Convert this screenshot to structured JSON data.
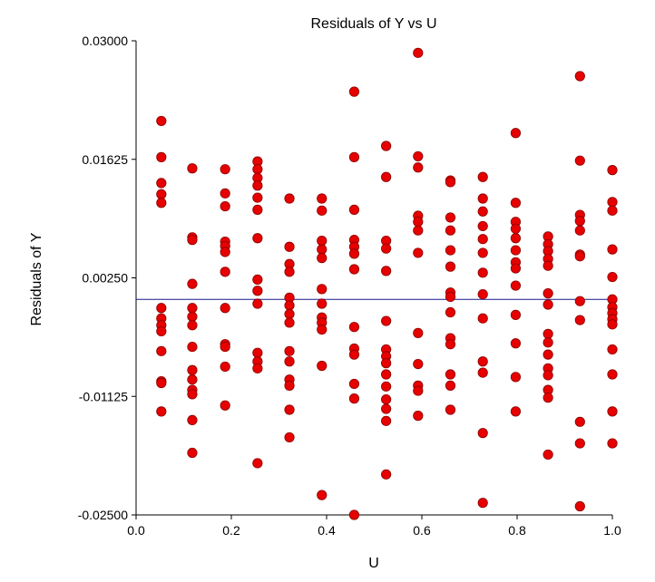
{
  "chart_data": {
    "type": "scatter",
    "title": "Residuals of Y vs U",
    "xlabel": "U",
    "ylabel": "Residuals of Y",
    "xlim": [
      0.0,
      1.0
    ],
    "ylim": [
      -0.025,
      0.03
    ],
    "x_ticks": [
      "0.0",
      "0.2",
      "0.4",
      "0.6",
      "0.8",
      "1.0"
    ],
    "y_ticks": [
      "0.03000",
      "0.01625",
      "0.00250",
      "-0.01125",
      "-0.02500"
    ],
    "reference_line_y": 0.0,
    "grid": false,
    "marker_color": "#e60000",
    "marker_edge_color": "#8b0000",
    "reference_line_color": "#1a1a8c",
    "points": [
      [
        0.053,
        0.0207
      ],
      [
        0.053,
        0.0165
      ],
      [
        0.053,
        0.0135
      ],
      [
        0.053,
        0.0122
      ],
      [
        0.053,
        0.0112
      ],
      [
        0.053,
        -0.001
      ],
      [
        0.053,
        -0.0022
      ],
      [
        0.053,
        -0.003
      ],
      [
        0.053,
        -0.0037
      ],
      [
        0.053,
        -0.006
      ],
      [
        0.053,
        -0.0095
      ],
      [
        0.053,
        -0.0097
      ],
      [
        0.053,
        -0.013
      ],
      [
        0.118,
        0.0152
      ],
      [
        0.118,
        0.0072
      ],
      [
        0.118,
        0.0069
      ],
      [
        0.118,
        0.0018
      ],
      [
        0.118,
        -0.001
      ],
      [
        0.118,
        -0.002
      ],
      [
        0.118,
        -0.003
      ],
      [
        0.118,
        -0.0055
      ],
      [
        0.118,
        -0.0082
      ],
      [
        0.118,
        -0.0093
      ],
      [
        0.118,
        -0.0105
      ],
      [
        0.118,
        -0.011
      ],
      [
        0.118,
        -0.014
      ],
      [
        0.118,
        -0.0178
      ],
      [
        0.187,
        0.0151
      ],
      [
        0.187,
        0.0123
      ],
      [
        0.187,
        0.0108
      ],
      [
        0.187,
        0.0067
      ],
      [
        0.187,
        0.0062
      ],
      [
        0.187,
        0.0055
      ],
      [
        0.187,
        0.0032
      ],
      [
        0.187,
        -0.001
      ],
      [
        0.187,
        -0.0052
      ],
      [
        0.187,
        -0.0055
      ],
      [
        0.187,
        -0.0078
      ],
      [
        0.187,
        -0.0123
      ],
      [
        0.255,
        0.016
      ],
      [
        0.255,
        0.0151
      ],
      [
        0.255,
        0.0141
      ],
      [
        0.255,
        0.0132
      ],
      [
        0.255,
        0.0118
      ],
      [
        0.255,
        0.0104
      ],
      [
        0.255,
        0.0071
      ],
      [
        0.255,
        0.0023
      ],
      [
        0.255,
        0.001
      ],
      [
        0.255,
        -0.0005
      ],
      [
        0.255,
        -0.0062
      ],
      [
        0.255,
        -0.0072
      ],
      [
        0.255,
        -0.008
      ],
      [
        0.255,
        -0.019
      ],
      [
        0.322,
        0.0117
      ],
      [
        0.322,
        0.0061
      ],
      [
        0.322,
        0.0041
      ],
      [
        0.322,
        0.0032
      ],
      [
        0.322,
        0.0002
      ],
      [
        0.322,
        -0.0007
      ],
      [
        0.322,
        -0.0017
      ],
      [
        0.322,
        -0.0027
      ],
      [
        0.322,
        -0.006
      ],
      [
        0.322,
        -0.0072
      ],
      [
        0.322,
        -0.0093
      ],
      [
        0.322,
        -0.01
      ],
      [
        0.322,
        -0.0128
      ],
      [
        0.322,
        -0.016
      ],
      [
        0.39,
        0.0117
      ],
      [
        0.39,
        0.0103
      ],
      [
        0.39,
        0.0068
      ],
      [
        0.39,
        0.0058
      ],
      [
        0.39,
        0.0048
      ],
      [
        0.39,
        0.0012
      ],
      [
        0.39,
        -0.0005
      ],
      [
        0.39,
        -0.0021
      ],
      [
        0.39,
        -0.0027
      ],
      [
        0.39,
        -0.0035
      ],
      [
        0.39,
        -0.0077
      ],
      [
        0.39,
        -0.0227
      ],
      [
        0.458,
        0.0241
      ],
      [
        0.458,
        0.0165
      ],
      [
        0.458,
        0.0104
      ],
      [
        0.458,
        0.0069
      ],
      [
        0.458,
        0.0061
      ],
      [
        0.458,
        0.0053
      ],
      [
        0.458,
        0.0035
      ],
      [
        0.458,
        -0.0032
      ],
      [
        0.458,
        -0.0057
      ],
      [
        0.458,
        -0.0064
      ],
      [
        0.458,
        -0.0098
      ],
      [
        0.458,
        -0.0115
      ],
      [
        0.458,
        -0.025
      ],
      [
        0.525,
        0.0178
      ],
      [
        0.525,
        0.0142
      ],
      [
        0.525,
        0.0068
      ],
      [
        0.525,
        0.0059
      ],
      [
        0.525,
        0.0033
      ],
      [
        0.525,
        -0.0025
      ],
      [
        0.525,
        -0.0058
      ],
      [
        0.525,
        -0.0066
      ],
      [
        0.525,
        -0.0074
      ],
      [
        0.525,
        -0.0087
      ],
      [
        0.525,
        -0.0101
      ],
      [
        0.525,
        -0.0116
      ],
      [
        0.525,
        -0.0127
      ],
      [
        0.525,
        -0.0141
      ],
      [
        0.525,
        -0.0203
      ],
      [
        0.592,
        0.0286
      ],
      [
        0.592,
        0.0166
      ],
      [
        0.592,
        0.0153
      ],
      [
        0.592,
        0.0097
      ],
      [
        0.592,
        0.009
      ],
      [
        0.592,
        0.008
      ],
      [
        0.592,
        0.0054
      ],
      [
        0.592,
        -0.0039
      ],
      [
        0.592,
        -0.0075
      ],
      [
        0.592,
        -0.01
      ],
      [
        0.592,
        -0.0106
      ],
      [
        0.592,
        -0.0135
      ],
      [
        0.66,
        0.0138
      ],
      [
        0.66,
        0.0136
      ],
      [
        0.66,
        0.0095
      ],
      [
        0.66,
        0.008
      ],
      [
        0.66,
        0.0057
      ],
      [
        0.66,
        0.0038
      ],
      [
        0.66,
        0.0008
      ],
      [
        0.66,
        0.0003
      ],
      [
        0.66,
        -0.0015
      ],
      [
        0.66,
        -0.0045
      ],
      [
        0.66,
        -0.0052
      ],
      [
        0.66,
        -0.0087
      ],
      [
        0.66,
        -0.01
      ],
      [
        0.66,
        -0.0128
      ],
      [
        0.728,
        0.0142
      ],
      [
        0.728,
        0.0117
      ],
      [
        0.728,
        0.0102
      ],
      [
        0.728,
        0.0085
      ],
      [
        0.728,
        0.007
      ],
      [
        0.728,
        0.0054
      ],
      [
        0.728,
        0.0031
      ],
      [
        0.728,
        0.0006
      ],
      [
        0.728,
        -0.0022
      ],
      [
        0.728,
        -0.0072
      ],
      [
        0.728,
        -0.0085
      ],
      [
        0.728,
        -0.0155
      ],
      [
        0.728,
        -0.0236
      ],
      [
        0.797,
        0.0193
      ],
      [
        0.797,
        0.0112
      ],
      [
        0.797,
        0.009
      ],
      [
        0.797,
        0.0082
      ],
      [
        0.797,
        0.0071
      ],
      [
        0.797,
        0.0057
      ],
      [
        0.797,
        0.0043
      ],
      [
        0.797,
        0.0036
      ],
      [
        0.797,
        0.0016
      ],
      [
        0.797,
        -0.0018
      ],
      [
        0.797,
        -0.0051
      ],
      [
        0.797,
        -0.009
      ],
      [
        0.797,
        -0.013
      ],
      [
        0.865,
        0.0073
      ],
      [
        0.865,
        0.0064
      ],
      [
        0.865,
        0.0056
      ],
      [
        0.865,
        0.0047
      ],
      [
        0.865,
        0.0039
      ],
      [
        0.865,
        0.0007
      ],
      [
        0.865,
        -0.0006
      ],
      [
        0.865,
        -0.004
      ],
      [
        0.865,
        -0.005
      ],
      [
        0.865,
        -0.0064
      ],
      [
        0.865,
        -0.008
      ],
      [
        0.865,
        -0.0088
      ],
      [
        0.865,
        -0.0105
      ],
      [
        0.865,
        -0.0114
      ],
      [
        0.865,
        -0.018
      ],
      [
        0.932,
        0.0259
      ],
      [
        0.932,
        0.0161
      ],
      [
        0.932,
        0.0098
      ],
      [
        0.932,
        0.0091
      ],
      [
        0.932,
        0.008
      ],
      [
        0.932,
        0.0052
      ],
      [
        0.932,
        0.005
      ],
      [
        0.932,
        -0.0002
      ],
      [
        0.932,
        -0.0024
      ],
      [
        0.932,
        -0.0142
      ],
      [
        0.932,
        -0.0167
      ],
      [
        0.932,
        -0.024
      ],
      [
        1.0,
        0.015
      ],
      [
        1.0,
        0.0113
      ],
      [
        1.0,
        0.0103
      ],
      [
        1.0,
        0.0058
      ],
      [
        1.0,
        0.0026
      ],
      [
        1.0,
        0.0
      ],
      [
        1.0,
        -0.0009
      ],
      [
        1.0,
        -0.0016
      ],
      [
        1.0,
        -0.0023
      ],
      [
        1.0,
        -0.0029
      ],
      [
        1.0,
        -0.0058
      ],
      [
        1.0,
        -0.0087
      ],
      [
        1.0,
        -0.013
      ],
      [
        1.0,
        -0.0167
      ]
    ]
  }
}
